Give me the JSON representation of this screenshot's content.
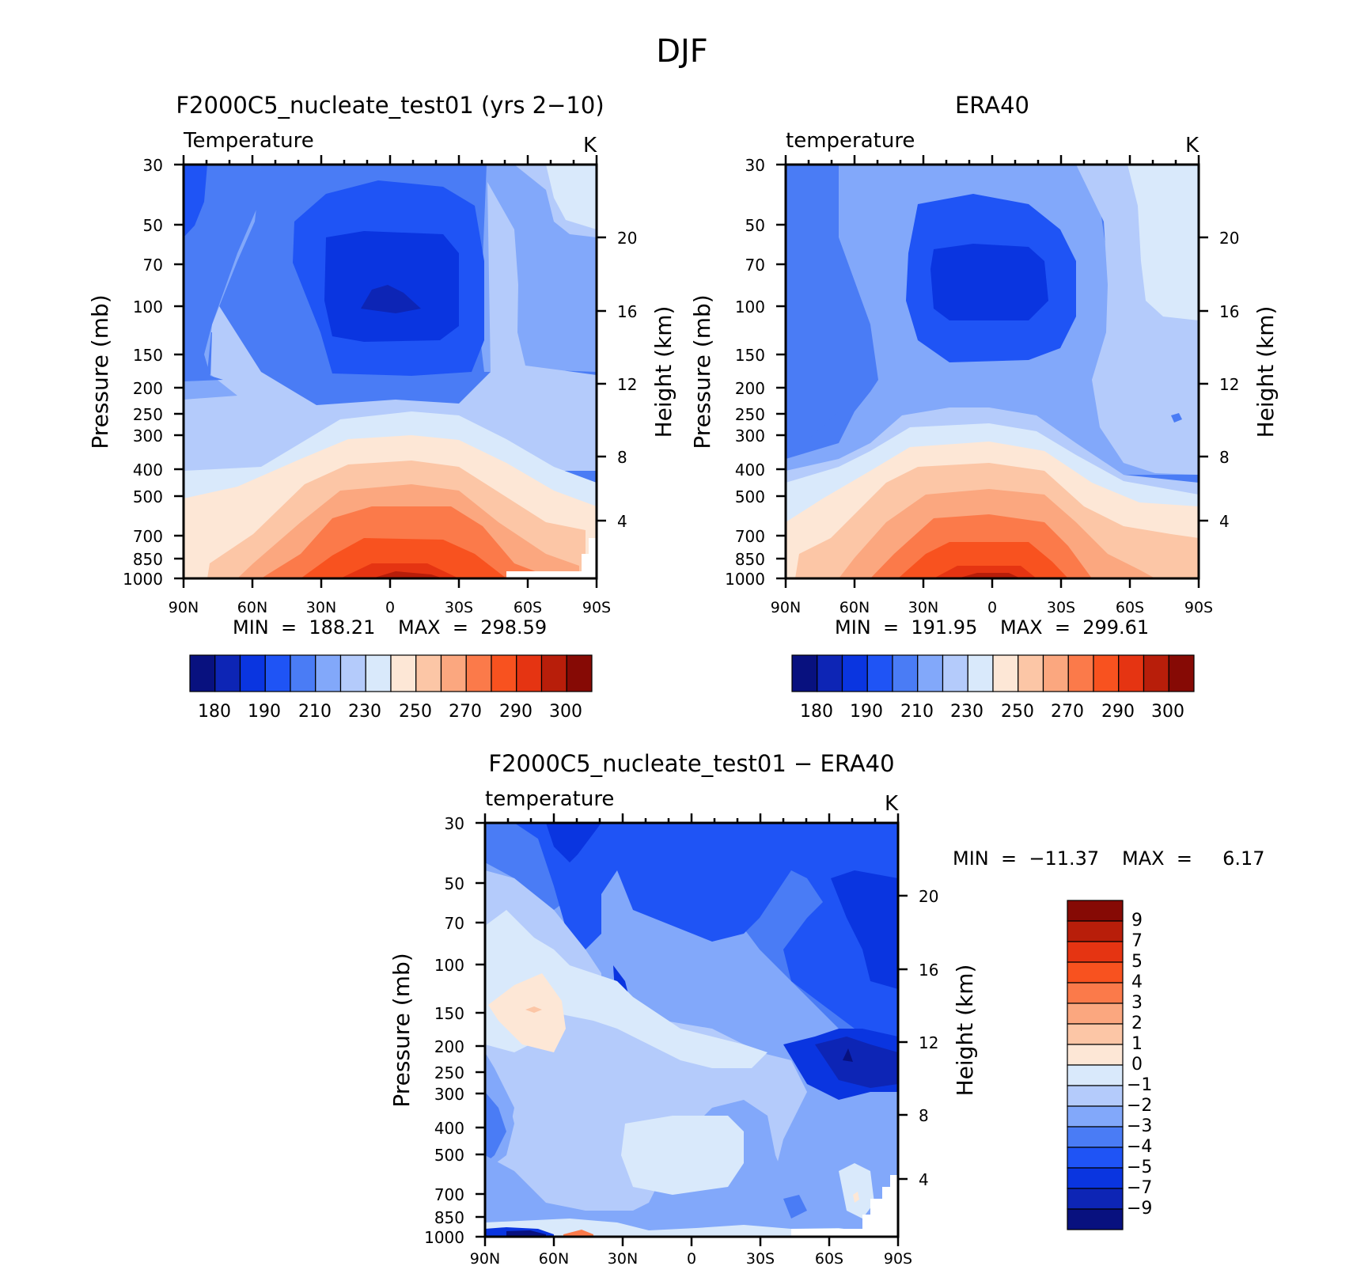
{
  "figure": {
    "title": "DJF"
  },
  "colors": {
    "temp_palette": [
      "#08117f",
      "#0d25b5",
      "#0a35e0",
      "#1f54f5",
      "#4a7cf5",
      "#82a8fa",
      "#b4cbfb",
      "#d9e9fb",
      "#fde7d6",
      "#fcc6a6",
      "#fba77f",
      "#fb7a4a",
      "#f8521f",
      "#e53412",
      "#b81e0a",
      "#860a05"
    ],
    "diff_palette": [
      "#08117f",
      "#0d25b5",
      "#0a35e0",
      "#1f54f5",
      "#4a7cf5",
      "#82a8fa",
      "#b4cbfb",
      "#d9e9fb",
      "#fde7d6",
      "#fcc6a6",
      "#fba77f",
      "#fb7a4a",
      "#f8521f",
      "#e53412",
      "#b81e0a",
      "#860a05"
    ]
  },
  "chart_data": [
    {
      "id": "model",
      "type": "contour",
      "title": "F2000C5_nucleate_test01 (yrs 2−10)",
      "left_label": "Temperature",
      "units": "K",
      "xlabel": "",
      "ylabel": "Pressure (mb)",
      "y2label": "Height (km)",
      "x_ticks": [
        "90N",
        "60N",
        "30N",
        "0",
        "30S",
        "60S",
        "90S"
      ],
      "y_ticks": [
        "30",
        "50",
        "70",
        "100",
        "150",
        "200",
        "250",
        "300",
        "400",
        "500",
        "700",
        "850",
        "1000"
      ],
      "y2_ticks": [
        "4",
        "8",
        "12",
        "16",
        "20"
      ],
      "min_text": "MIN  =  188.21",
      "max_text": "MAX  =  298.59",
      "min": 188.21,
      "max": 298.59,
      "colorbar_levels": [
        "180",
        "190",
        "210",
        "230",
        "250",
        "270",
        "290",
        "300"
      ]
    },
    {
      "id": "obs",
      "type": "contour",
      "title": "ERA40",
      "left_label": "temperature",
      "units": "K",
      "xlabel": "",
      "ylabel": "Pressure (mb)",
      "y2label": "Height (km)",
      "x_ticks": [
        "90N",
        "60N",
        "30N",
        "0",
        "30S",
        "60S",
        "90S"
      ],
      "y_ticks": [
        "30",
        "50",
        "70",
        "100",
        "150",
        "200",
        "250",
        "300",
        "400",
        "500",
        "700",
        "850",
        "1000"
      ],
      "y2_ticks": [
        "4",
        "8",
        "12",
        "16",
        "20"
      ],
      "min_text": "MIN  =  191.95",
      "max_text": "MAX  =  299.61",
      "min": 191.95,
      "max": 299.61,
      "colorbar_levels": [
        "180",
        "190",
        "210",
        "230",
        "250",
        "270",
        "290",
        "300"
      ]
    },
    {
      "id": "diff",
      "type": "contour",
      "title": "F2000C5_nucleate_test01 − ERA40",
      "left_label": "temperature",
      "units": "K",
      "xlabel": "",
      "ylabel": "Pressure (mb)",
      "y2label": "Height (km)",
      "x_ticks": [
        "90N",
        "60N",
        "30N",
        "0",
        "30S",
        "60S",
        "90S"
      ],
      "y_ticks": [
        "30",
        "50",
        "70",
        "100",
        "150",
        "200",
        "250",
        "300",
        "400",
        "500",
        "700",
        "850",
        "1000"
      ],
      "y2_ticks": [
        "4",
        "8",
        "12",
        "16",
        "20"
      ],
      "min_text": "MIN  =  −11.37",
      "max_text": "MAX  =     6.17",
      "min": -11.37,
      "max": 6.17,
      "colorbar_levels": [
        "9",
        "7",
        "5",
        "4",
        "3",
        "2",
        "1",
        "0",
        "−1",
        "−2",
        "−3",
        "−4",
        "−5",
        "−7",
        "−9"
      ]
    }
  ]
}
